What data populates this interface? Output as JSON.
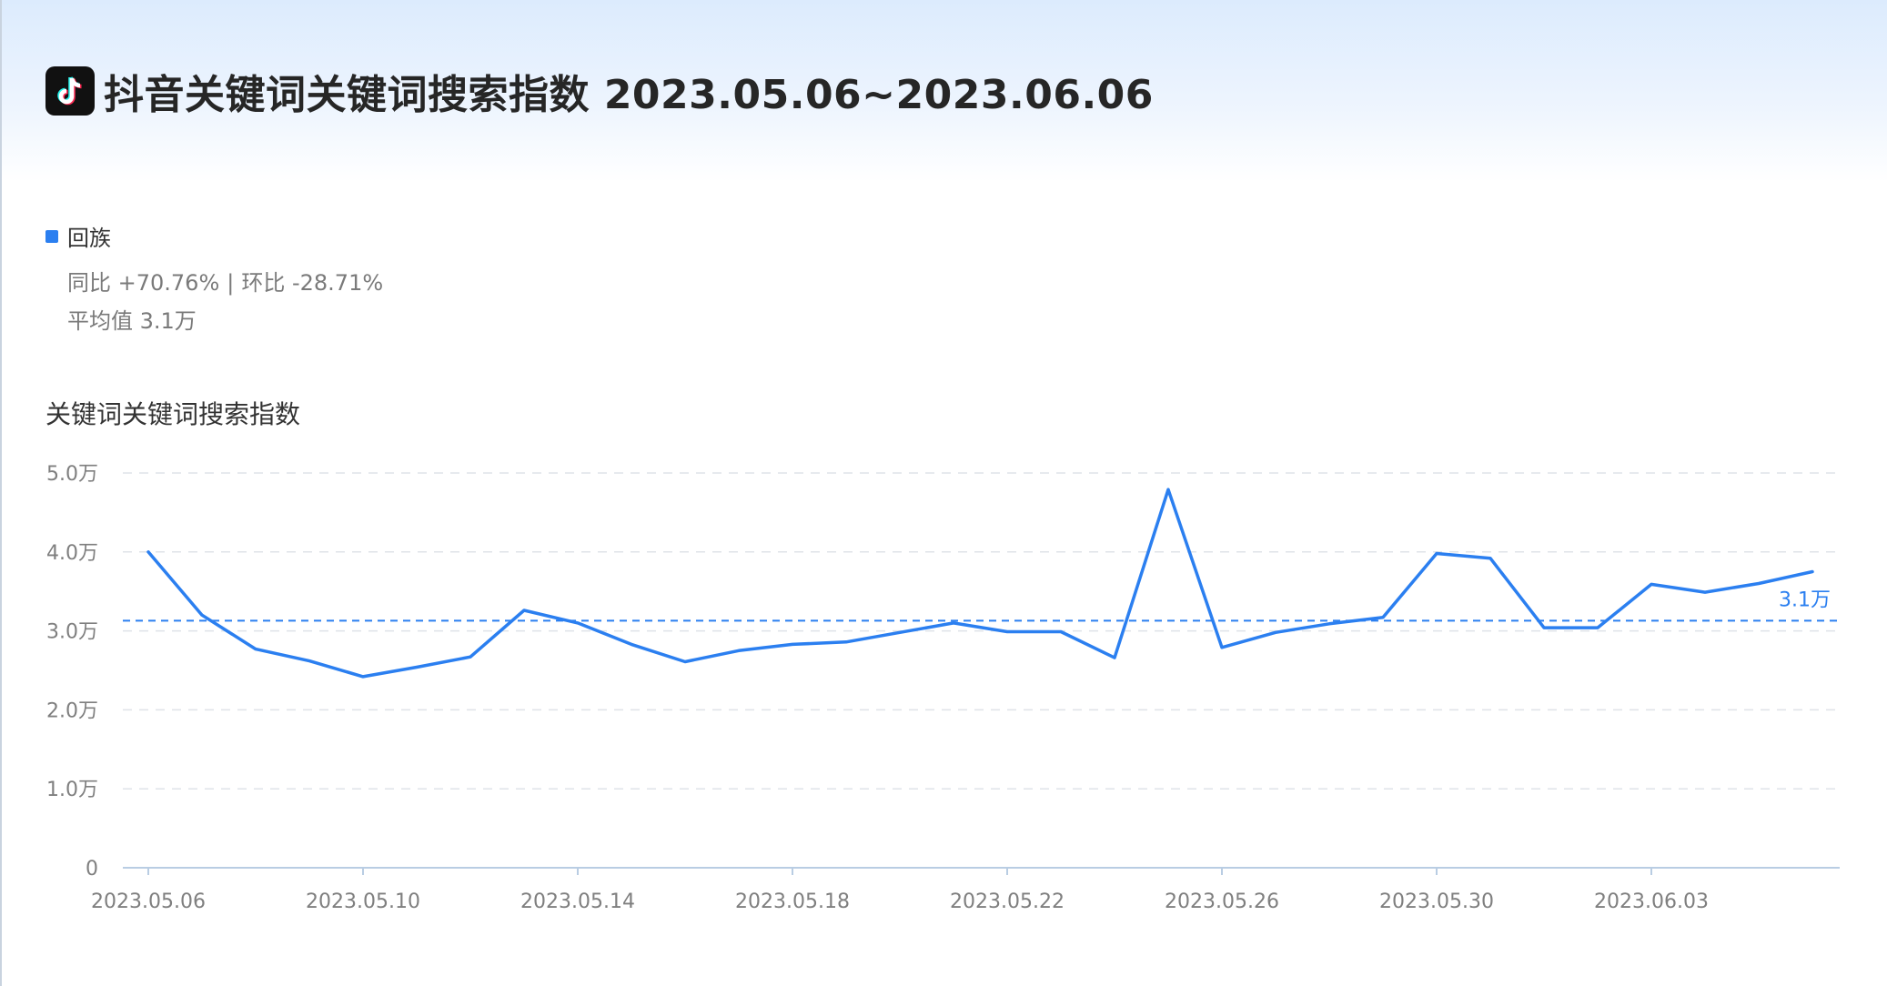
{
  "header": {
    "title": "抖音关键词关键词搜索指数 2023.05.06~2023.06.06",
    "logo_icon": "tiktok-logo"
  },
  "legend": {
    "label": "回族",
    "color": "#2b7ff0"
  },
  "stats": {
    "yoy": "同比 +70.76%",
    "separator": "|",
    "mom": "环比 -28.71%",
    "average": "平均值 3.1万"
  },
  "chart_data": {
    "type": "line",
    "title": "关键词关键词搜索指数",
    "x": [
      "2023.05.06",
      "2023.05.07",
      "2023.05.08",
      "2023.05.09",
      "2023.05.10",
      "2023.05.11",
      "2023.05.12",
      "2023.05.13",
      "2023.05.14",
      "2023.05.15",
      "2023.05.16",
      "2023.05.17",
      "2023.05.18",
      "2023.05.19",
      "2023.05.20",
      "2023.05.21",
      "2023.05.22",
      "2023.05.23",
      "2023.05.24",
      "2023.05.25",
      "2023.05.26",
      "2023.05.27",
      "2023.05.28",
      "2023.05.29",
      "2023.05.30",
      "2023.05.31",
      "2023.06.01",
      "2023.06.02",
      "2023.06.03",
      "2023.06.04",
      "2023.06.05",
      "2023.06.06"
    ],
    "x_tick_labels": [
      "2023.05.06",
      "2023.05.10",
      "2023.05.14",
      "2023.05.18",
      "2023.05.22",
      "2023.05.26",
      "2023.05.30",
      "2023.06.03"
    ],
    "series": [
      {
        "name": "回族",
        "color": "#2b7ff0",
        "values": [
          40000,
          32000,
          27700,
          26200,
          24200,
          25400,
          26700,
          32600,
          31000,
          28300,
          26100,
          27500,
          28300,
          28600,
          29800,
          31000,
          29900,
          29900,
          26600,
          47900,
          27900,
          29800,
          30900,
          31700,
          39800,
          39200,
          30400,
          30400,
          35900,
          34900,
          36000,
          37500
        ]
      }
    ],
    "average": {
      "value": 31300,
      "label": "3.1万"
    },
    "ylim": [
      0,
      50000
    ],
    "y_ticks": [
      {
        "value": 0,
        "label": "0"
      },
      {
        "value": 10000,
        "label": "1.0万"
      },
      {
        "value": 20000,
        "label": "2.0万"
      },
      {
        "value": 30000,
        "label": "3.0万"
      },
      {
        "value": 40000,
        "label": "4.0万"
      },
      {
        "value": 50000,
        "label": "5.0万"
      }
    ],
    "grid": true,
    "legend_position": "top-left"
  }
}
